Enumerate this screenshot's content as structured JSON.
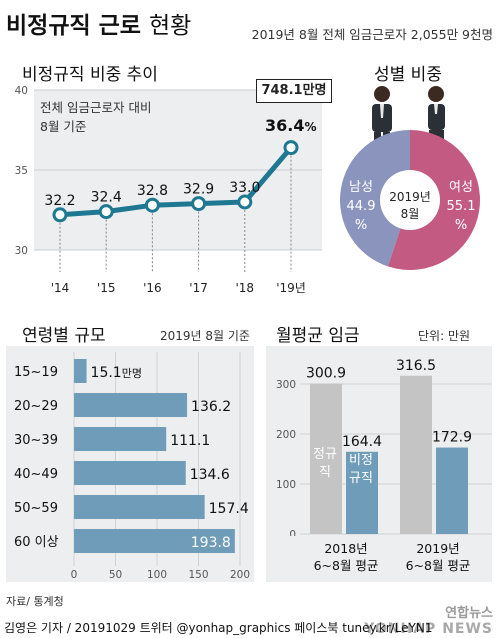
{
  "header": {
    "title_bold": "비정규직 근로",
    "title_light": "현황",
    "subtitle": "2019년 8월 전체 임금근로자 2,055만 9천명"
  },
  "ratio_panel": {
    "title": "비정규직 비중 추이",
    "note_line1": "전체 임금근로자 대비",
    "note_line2": "8월 기준",
    "callout": "748.1만명",
    "last_value_label": "36.4",
    "last_value_unit": "%"
  },
  "gender_panel": {
    "title": "성별 비중",
    "center_line1": "2019년",
    "center_line2": "8월",
    "male_label": "남성",
    "male_value": "44.9",
    "male_unit": "%",
    "female_label": "여성",
    "female_value": "55.1",
    "female_unit": "%"
  },
  "age_panel": {
    "title": "연령별 규모",
    "note": "2019년 8월 기준",
    "unit_suffix": "만명"
  },
  "wage_panel": {
    "title": "월평균 임금",
    "unit": "단위: 만원",
    "regular_label": "정규직",
    "irregular_label": "비정규직",
    "group1_line1": "2018년",
    "group1_line2": "6~8월 평균",
    "group2_line1": "2019년",
    "group2_line2": "6~8월 평균"
  },
  "footer": {
    "source": "자료/ 통계청",
    "credit": "김영은 기자 / 20191029  트위터 @yonhap_graphics  페이스북 tuney.kr/LeYN1",
    "logo_line1": "연합뉴스",
    "logo_line2": "YONHAP NEWS"
  },
  "colors": {
    "teal": "#1f7892",
    "bar_blue": "#6f9cb8",
    "wage_gray": "#c4c4c4",
    "pie_male": "#8b94bd",
    "pie_female": "#c25a82"
  },
  "chart_data": [
    {
      "type": "line",
      "x": [
        "'14",
        "'15",
        "'16",
        "'17",
        "'18",
        "'19년"
      ],
      "values": [
        32.2,
        32.4,
        32.8,
        32.9,
        33.0,
        36.4
      ],
      "value_labels": [
        "32.2",
        "32.4",
        "32.8",
        "32.9",
        "33.0",
        "36.4"
      ],
      "ylim": [
        30,
        40
      ],
      "yticks": [
        30,
        35,
        40
      ]
    },
    {
      "type": "pie",
      "slices": [
        {
          "label": "남성",
          "value": 44.9
        },
        {
          "label": "여성",
          "value": 55.1
        }
      ]
    },
    {
      "type": "bar",
      "orientation": "horizontal",
      "categories": [
        "15~19",
        "20~29",
        "30~39",
        "40~49",
        "50~59",
        "60 이상"
      ],
      "values": [
        15.1,
        136.2,
        111.1,
        134.6,
        157.4,
        193.8
      ],
      "value_labels": [
        "15.1",
        "136.2",
        "111.1",
        "134.6",
        "157.4",
        "193.8"
      ],
      "xlim": [
        0,
        200
      ],
      "xticks": [
        0,
        50,
        100,
        150,
        200
      ]
    },
    {
      "type": "bar",
      "categories": [
        "2018년 6~8월 평균",
        "2019년 6~8월 평균"
      ],
      "series": [
        {
          "name": "정규직",
          "values": [
            300.9,
            316.5
          ],
          "labels": [
            "300.9",
            "316.5"
          ]
        },
        {
          "name": "비정규직",
          "values": [
            164.4,
            172.9
          ],
          "labels": [
            "164.4",
            "172.9"
          ]
        }
      ],
      "ylim": [
        0,
        300
      ],
      "yticks": [
        0,
        100,
        200,
        300
      ]
    }
  ]
}
